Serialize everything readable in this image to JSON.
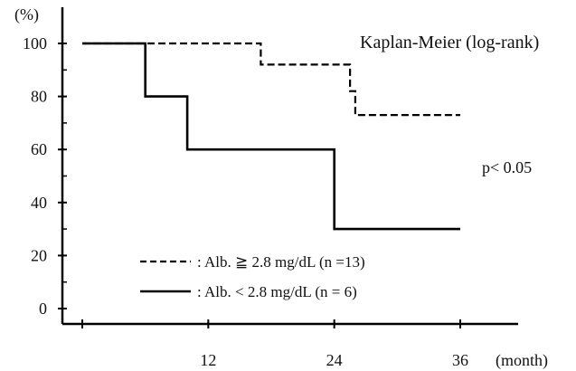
{
  "chart_data": {
    "type": "line",
    "title": "Kaplan-Meier (log-rank)",
    "annotation": "p< 0.05",
    "y_unit_label": "(%)",
    "x_unit_label": "(month)",
    "xlim": [
      0,
      36
    ],
    "ylim": [
      0,
      100
    ],
    "x_ticks": [
      12,
      24,
      36
    ],
    "y_ticks": [
      0,
      20,
      40,
      60,
      80,
      100
    ],
    "grid": false,
    "series": [
      {
        "name": ": Alb. ≧ 2.8 mg/dL (n =13)",
        "style": "dashed",
        "points": [
          [
            0,
            100
          ],
          [
            17,
            100
          ],
          [
            17,
            92
          ],
          [
            25.5,
            92
          ],
          [
            25.5,
            82
          ],
          [
            26,
            82
          ],
          [
            26,
            73
          ],
          [
            36,
            73
          ]
        ]
      },
      {
        "name": ": Alb. < 2.8 mg/dL (n = 6)",
        "style": "solid",
        "points": [
          [
            0,
            100
          ],
          [
            6,
            100
          ],
          [
            6,
            80
          ],
          [
            10,
            80
          ],
          [
            10,
            60
          ],
          [
            24,
            60
          ],
          [
            24,
            30
          ],
          [
            36,
            30
          ]
        ]
      }
    ]
  }
}
